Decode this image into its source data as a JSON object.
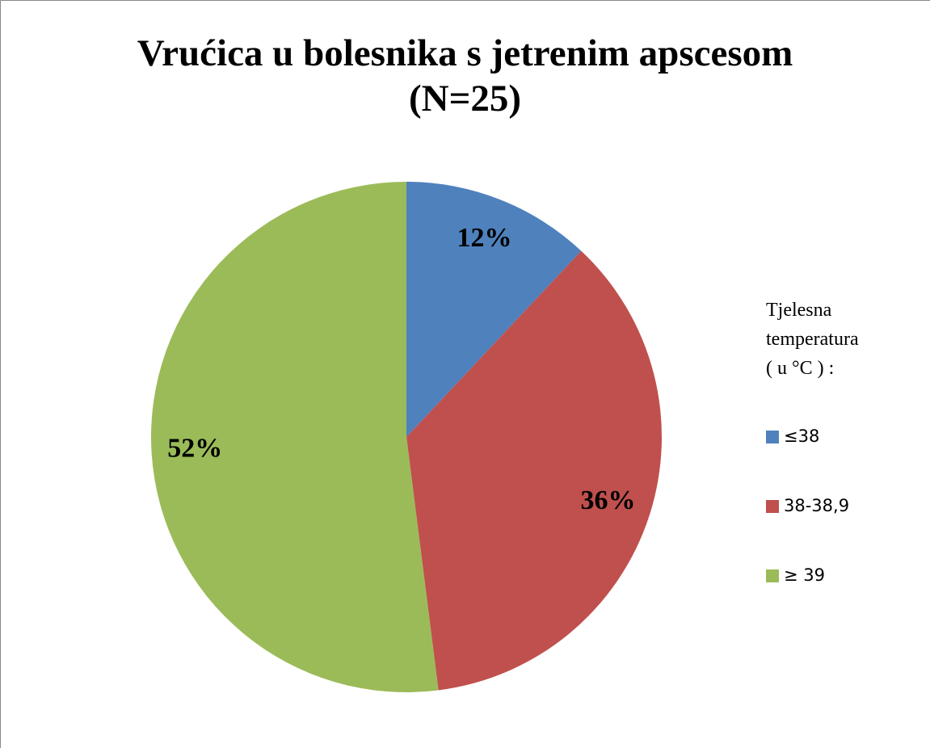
{
  "chart_data": {
    "type": "pie",
    "title": "Vrućica u bolesnika s jetrenim apscesom\n(N=25)",
    "legend_title": "Tjelesna\ntemperatura\n( u °C ) :",
    "categories": [
      "≤38",
      "38-38,9",
      "≥ 39"
    ],
    "values": [
      12,
      36,
      52
    ],
    "value_labels": [
      "12%",
      "36%",
      "52%"
    ],
    "colors": [
      "#4f81bd",
      "#c0504d",
      "#9bbb59"
    ],
    "legend": "right"
  }
}
